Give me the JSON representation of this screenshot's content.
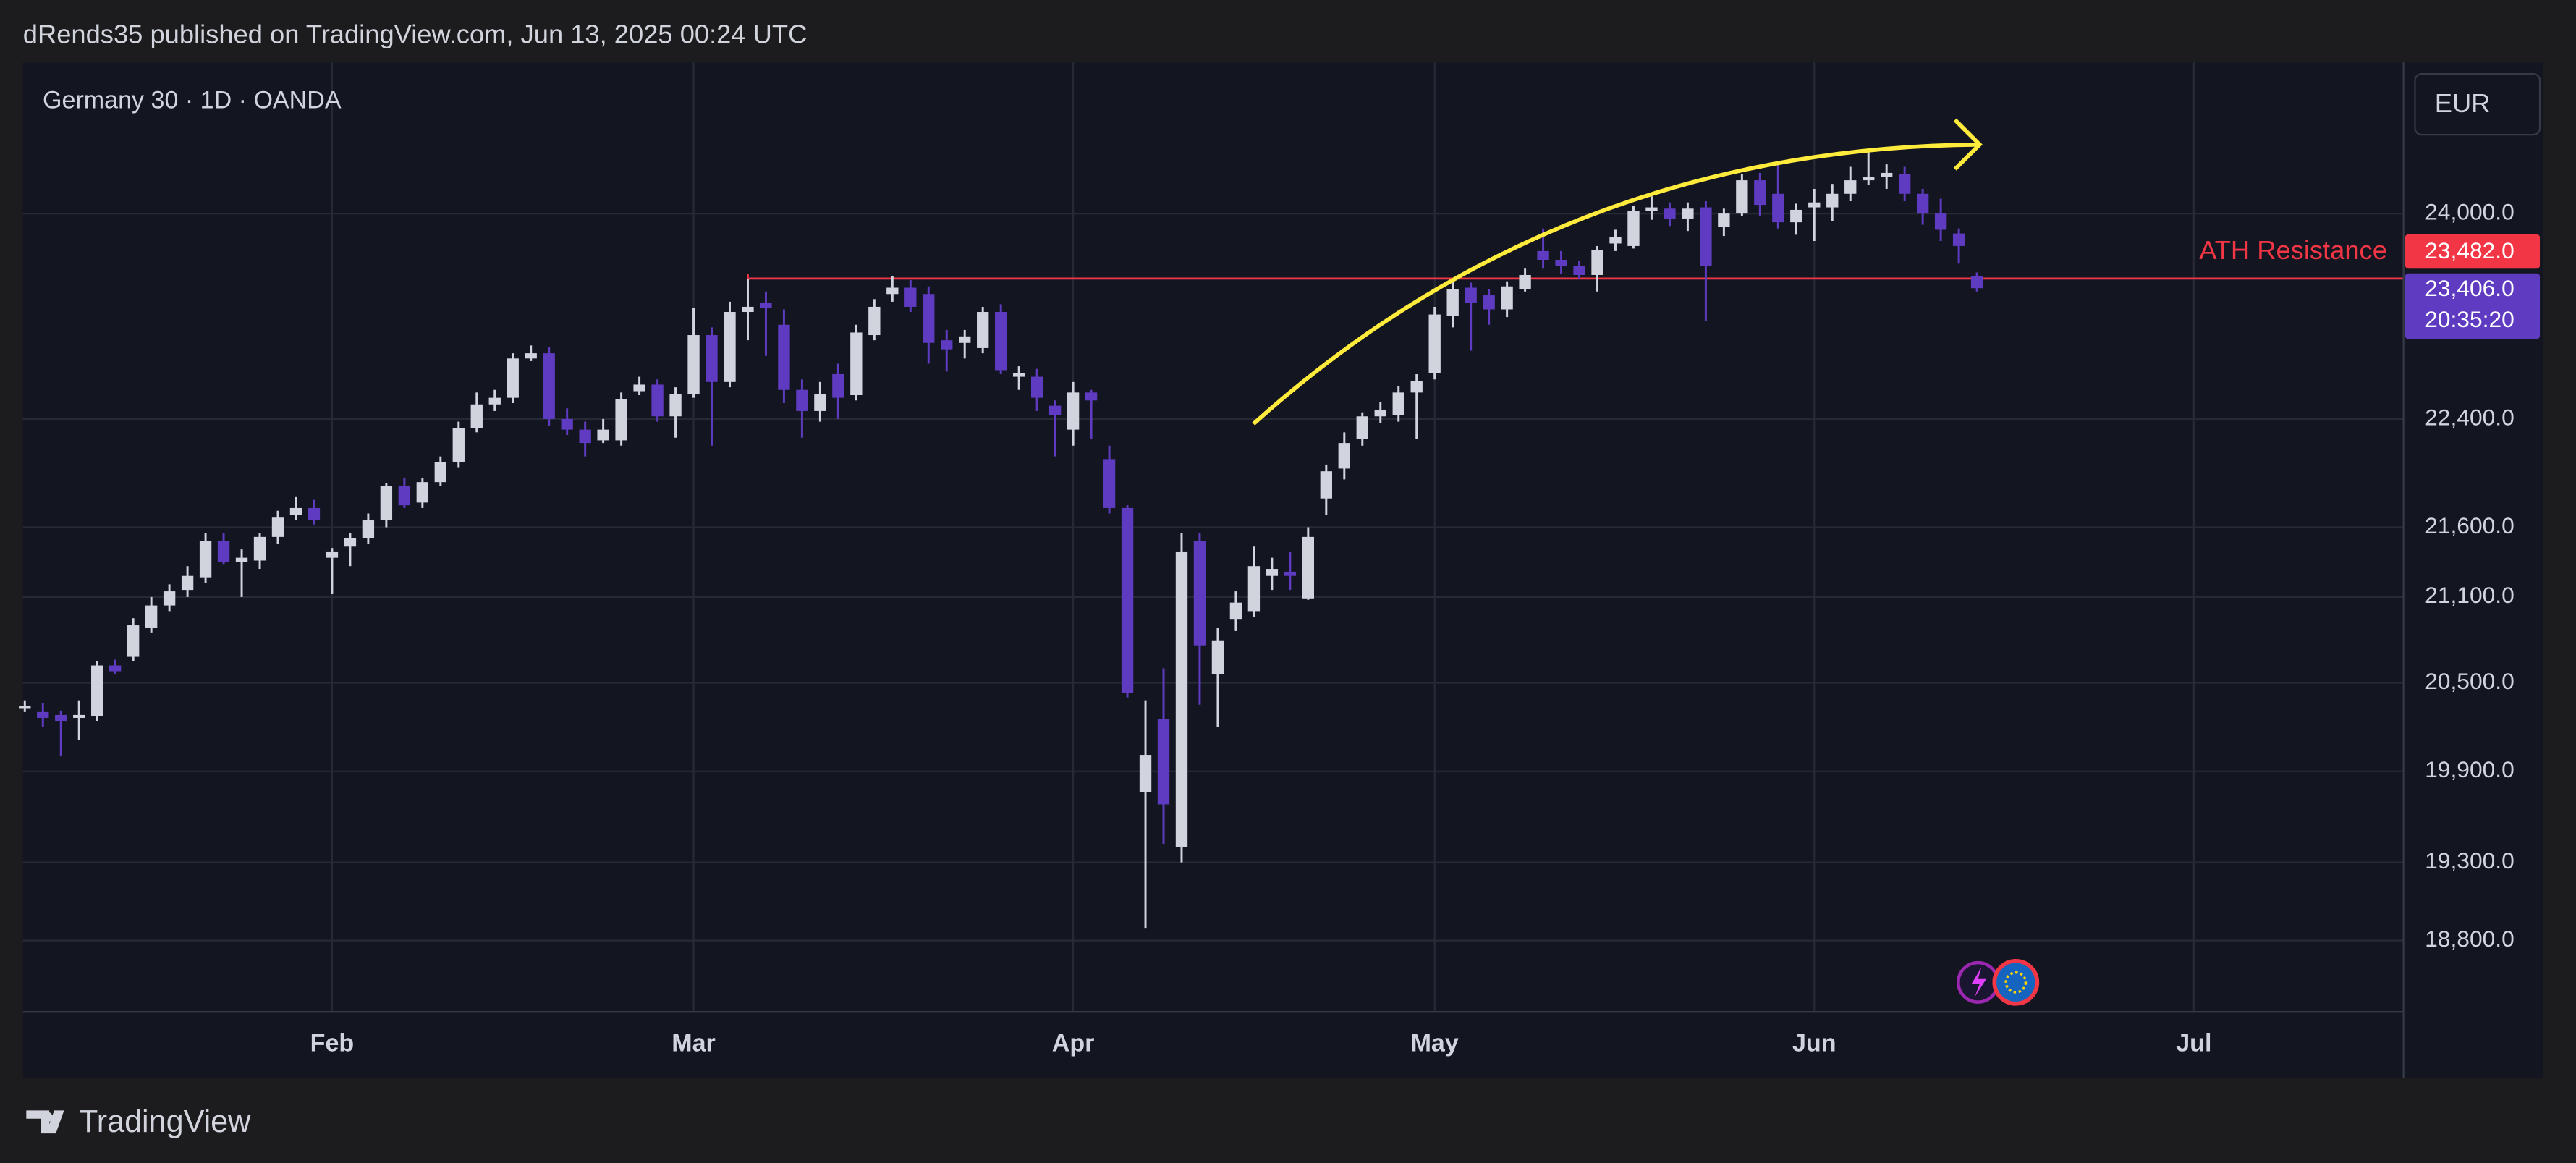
{
  "header": "dRends35 published on TradingView.com, Jun 13, 2025 00:24 UTC",
  "footer": "TradingView",
  "chart_data": {
    "type": "candlestick",
    "title": "Germany 30 · 1D · OANDA",
    "currency": "EUR",
    "log_scale": true,
    "grid": true,
    "up_color": "#d1d4dc",
    "down_color": "#5e3bc0",
    "xlim": [
      -0.1,
      131.6
    ],
    "xticks": [
      {
        "value": 17,
        "label": "Feb"
      },
      {
        "value": 37,
        "label": "Mar"
      },
      {
        "value": 58,
        "label": "Apr"
      },
      {
        "value": 78,
        "label": "May"
      },
      {
        "value": 99,
        "label": "Jun"
      },
      {
        "value": 120,
        "label": "Jul"
      }
    ],
    "ylim": [
      18355,
      25250
    ],
    "yticks": [
      {
        "value": 24000,
        "label": "24,000.0"
      },
      {
        "value": 22400,
        "label": "22,400.0"
      },
      {
        "value": 21600,
        "label": "21,600.0"
      },
      {
        "value": 21100,
        "label": "21,100.0"
      },
      {
        "value": 20500,
        "label": "20,500.0"
      },
      {
        "value": 19900,
        "label": "19,900.0"
      },
      {
        "value": 19300,
        "label": "19,300.0"
      },
      {
        "value": 18800,
        "label": "18,800.0"
      }
    ],
    "open": [
      20330,
      20300,
      20280,
      20260,
      20270,
      20620,
      20680,
      20880,
      21040,
      21150,
      21240,
      21500,
      21350,
      21360,
      21530,
      21690,
      21740,
      21380,
      21460,
      21520,
      21650,
      21900,
      21780,
      21930,
      22080,
      22330,
      22510,
      22560,
      22860,
      22900,
      22400,
      22320,
      22240,
      22240,
      22610,
      22660,
      22420,
      22590,
      23040,
      22680,
      23220,
      23290,
      23120,
      22620,
      22460,
      22740,
      22580,
      23040,
      23360,
      23410,
      23360,
      23000,
      22980,
      22940,
      23220,
      22720,
      22720,
      22500,
      22320,
      22600,
      22100,
      21740,
      19760,
      20250,
      19400,
      21500,
      20560,
      20940,
      21000,
      21250,
      21280,
      21090,
      21810,
      22030,
      22250,
      22420,
      22430,
      22600,
      22750,
      23190,
      23410,
      23350,
      23240,
      23400,
      23700,
      23630,
      23580,
      23510,
      23760,
      23740,
      24020,
      24040,
      23960,
      24050,
      23890,
      24000,
      24270,
      24160,
      23930,
      24050,
      24050,
      24160,
      24270,
      24300,
      24320,
      24160,
      24000,
      23840,
      23500
    ],
    "high": [
      20380,
      20360,
      20310,
      20380,
      20650,
      20660,
      20950,
      21100,
      21190,
      21320,
      21560,
      21560,
      21440,
      21560,
      21720,
      21820,
      21800,
      21450,
      21560,
      21700,
      21920,
      21960,
      21960,
      22120,
      22380,
      22600,
      22620,
      22900,
      22960,
      22950,
      22480,
      22380,
      22400,
      22600,
      22720,
      22700,
      22640,
      23250,
      23100,
      23300,
      23480,
      23380,
      23240,
      22700,
      22680,
      22820,
      23120,
      23320,
      23500,
      23470,
      23420,
      23080,
      23080,
      23260,
      23280,
      22800,
      22780,
      22540,
      22680,
      22620,
      22200,
      21760,
      20380,
      20600,
      21560,
      21560,
      20880,
      21140,
      21460,
      21380,
      21420,
      21600,
      22060,
      22300,
      22450,
      22530,
      22650,
      22740,
      23260,
      23480,
      23450,
      23400,
      23460,
      23560,
      23880,
      23700,
      23620,
      23740,
      23870,
      24060,
      24140,
      24090,
      24090,
      24100,
      24040,
      24320,
      24330,
      24420,
      24080,
      24200,
      24240,
      24380,
      24500,
      24400,
      24380,
      24200,
      24120,
      23880,
      23530
    ],
    "low": [
      20300,
      20200,
      20000,
      20110,
      20240,
      20560,
      20650,
      20850,
      21000,
      21100,
      21200,
      21330,
      21100,
      21300,
      21480,
      21650,
      21620,
      21120,
      21320,
      21480,
      21600,
      21740,
      21740,
      21900,
      22040,
      22300,
      22460,
      22520,
      22840,
      22350,
      22280,
      22120,
      22220,
      22200,
      22580,
      22380,
      22260,
      22560,
      22200,
      22640,
      23000,
      22880,
      22520,
      22260,
      22380,
      22400,
      22540,
      23000,
      23300,
      23220,
      22820,
      22760,
      22860,
      22900,
      22740,
      22620,
      22460,
      22120,
      22200,
      22250,
      21700,
      20400,
      18880,
      19420,
      19300,
      20350,
      20200,
      20860,
      20960,
      21150,
      21150,
      21080,
      21690,
      21950,
      22200,
      22370,
      22380,
      22250,
      22700,
      23100,
      22920,
      23120,
      23180,
      23380,
      23560,
      23520,
      23480,
      23380,
      23700,
      23720,
      23950,
      23900,
      23860,
      23150,
      23820,
      23980,
      23980,
      23880,
      23830,
      23780,
      23940,
      24100,
      24230,
      24200,
      24100,
      23910,
      23780,
      23600,
      23380
    ],
    "close": [
      20340,
      20260,
      20240,
      20280,
      20620,
      20580,
      20900,
      21040,
      21140,
      21250,
      21500,
      21350,
      21380,
      21530,
      21670,
      21740,
      21650,
      21420,
      21520,
      21650,
      21900,
      21760,
      21930,
      22080,
      22330,
      22510,
      22560,
      22860,
      22900,
      22400,
      22320,
      22220,
      22320,
      22550,
      22660,
      22420,
      22590,
      23040,
      22680,
      23220,
      23260,
      23250,
      22620,
      22460,
      22590,
      22560,
      23060,
      23260,
      23410,
      23260,
      22980,
      22930,
      23030,
      23220,
      22770,
      22750,
      22560,
      22430,
      22600,
      22540,
      21740,
      20430,
      20010,
      19680,
      21420,
      20760,
      20790,
      21060,
      21320,
      21300,
      21250,
      21530,
      22010,
      22220,
      22420,
      22470,
      22600,
      22690,
      23200,
      23400,
      23290,
      23240,
      23420,
      23510,
      23630,
      23580,
      23510,
      23710,
      23810,
      24020,
      24050,
      23960,
      24040,
      23580,
      24000,
      24270,
      24070,
      23930,
      24030,
      24090,
      24160,
      24270,
      24300,
      24330,
      24160,
      24000,
      23870,
      23740,
      23406
    ],
    "resistance": {
      "label": "ATH Resistance",
      "value": 23482,
      "value_label": "23,482.0",
      "color": "#f23645"
    },
    "last_price": {
      "value": 23406,
      "label": "23,406.0",
      "countdown": "20:35:20",
      "color": "#5e3bc0"
    }
  }
}
